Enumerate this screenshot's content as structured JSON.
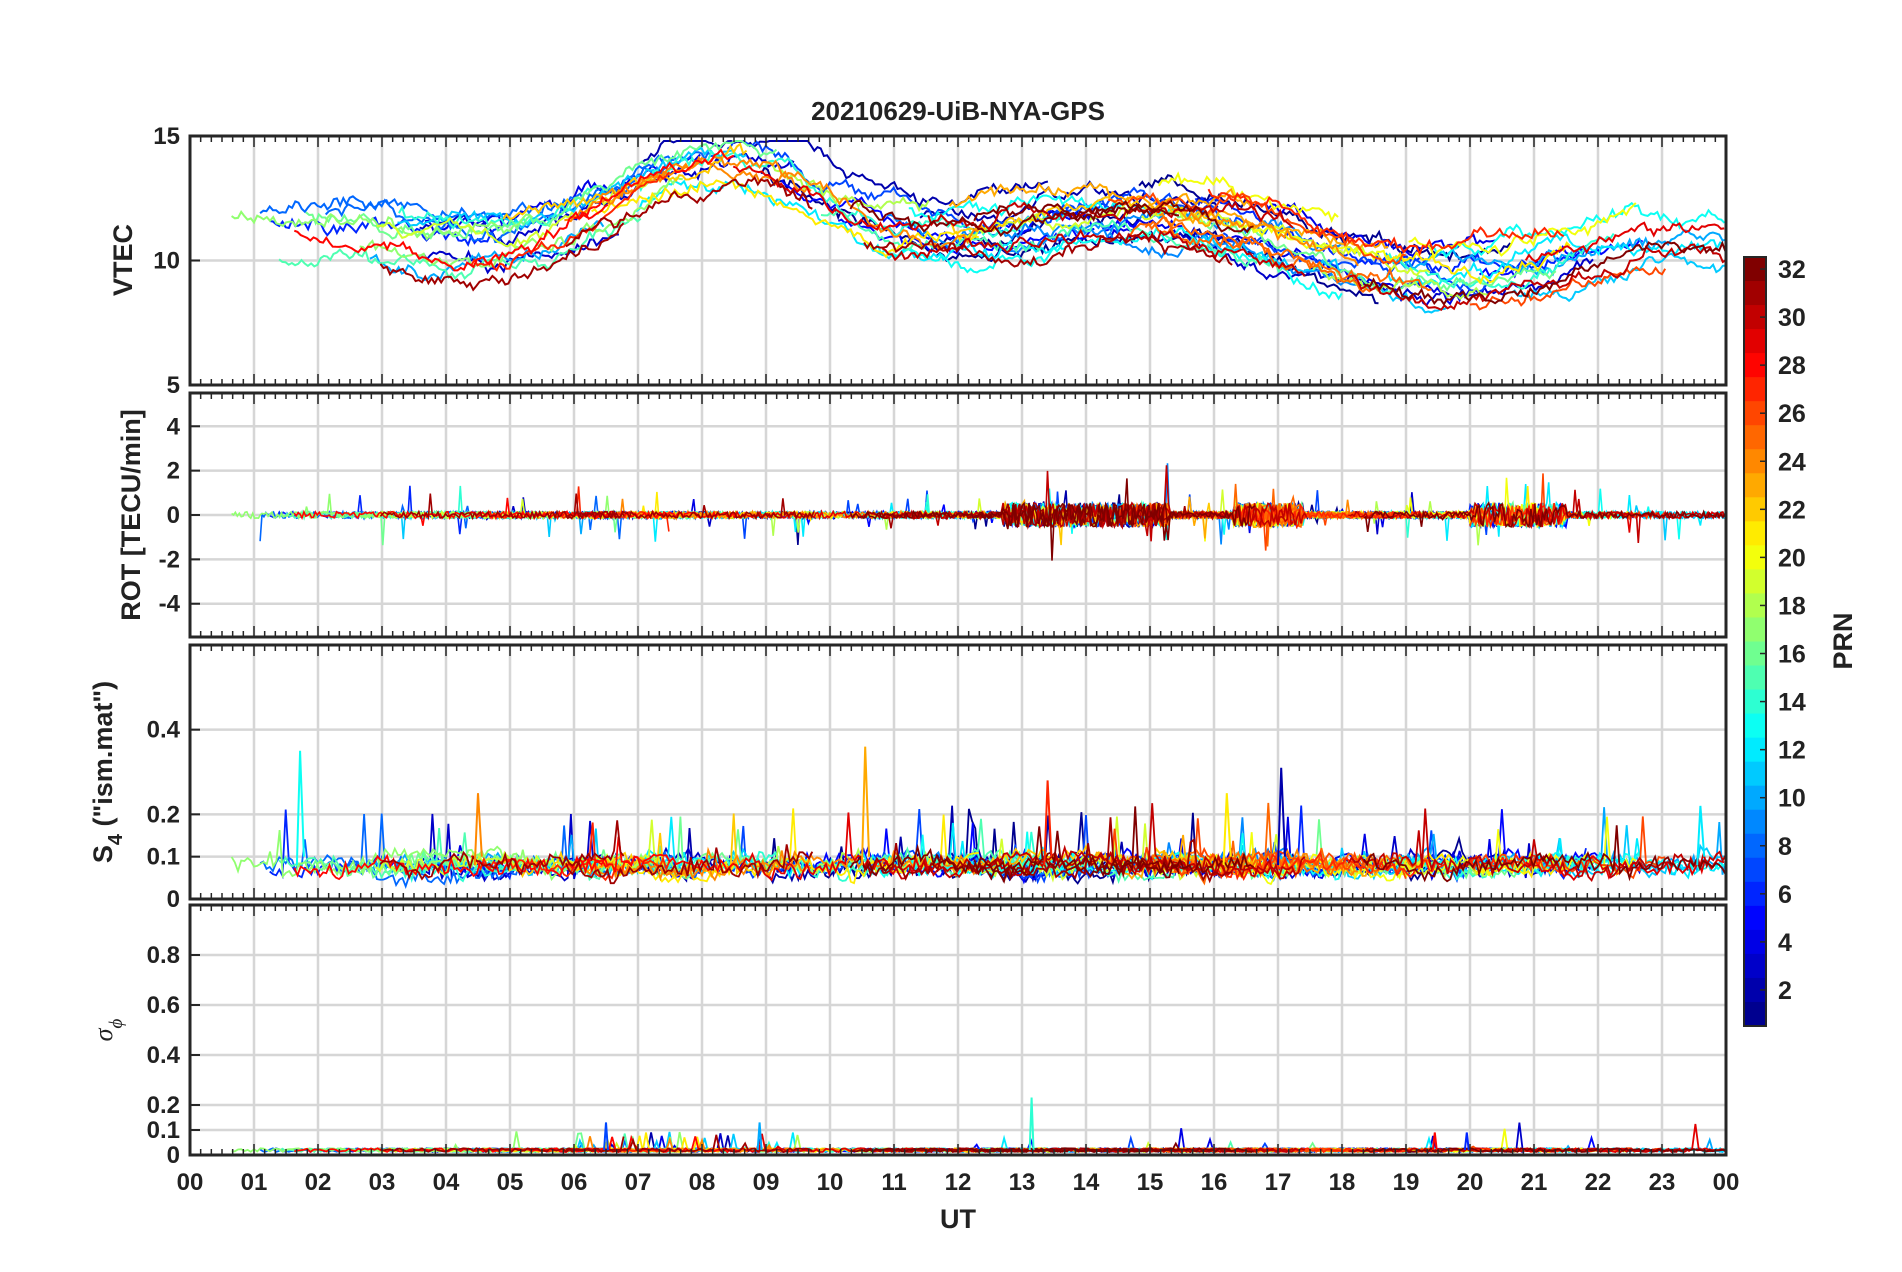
{
  "title": "20210629-UiB-NYA-GPS",
  "x_axis": {
    "label": "UT",
    "range_hours": [
      0,
      24
    ],
    "tick_labels": [
      "00",
      "01",
      "02",
      "03",
      "04",
      "05",
      "06",
      "07",
      "08",
      "09",
      "10",
      "11",
      "12",
      "13",
      "14",
      "15",
      "16",
      "17",
      "18",
      "19",
      "20",
      "21",
      "22",
      "23",
      "00"
    ]
  },
  "colorbar": {
    "label": "PRN",
    "range": [
      1,
      32
    ],
    "tick_labels": [
      "32",
      "30",
      "28",
      "26",
      "24",
      "22",
      "20",
      "18",
      "16",
      "14",
      "12",
      "10",
      "8",
      "6",
      "4",
      "2"
    ],
    "tick_values": [
      32,
      30,
      28,
      26,
      24,
      22,
      20,
      18,
      16,
      14,
      12,
      10,
      8,
      6,
      4,
      2
    ]
  },
  "colormap": [
    "#00008f",
    "#0000ff",
    "#0080ff",
    "#00ffff",
    "#80ff80",
    "#ffff00",
    "#ff8000",
    "#ff0000",
    "#800000"
  ],
  "chart_data": [
    {
      "type": "line",
      "panel": "VTEC",
      "ylabel": "VTEC",
      "ylim": [
        5,
        15
      ],
      "ytick_values": [
        5,
        10,
        15
      ],
      "ytick_labels": [
        "5",
        "10",
        "15"
      ],
      "grid": true,
      "series_summary": {
        "prn_count": 32,
        "typical_range": [
          7.5,
          14.8
        ],
        "peak_time_hours": 8.0,
        "peak_value": 14.8
      }
    },
    {
      "type": "line",
      "panel": "ROT",
      "ylabel": "ROT [TECU/min]",
      "ylim": [
        -5.5,
        5.5
      ],
      "ytick_values": [
        -4,
        -2,
        0,
        2,
        4
      ],
      "ytick_labels": [
        "-4",
        "-2",
        "0",
        "2",
        "4"
      ],
      "grid": true,
      "series_summary": {
        "prn_count": 32,
        "typical_range": [
          -2.5,
          2.5
        ],
        "baseline": 0
      }
    },
    {
      "type": "line",
      "panel": "S4",
      "ylabel_main": "S",
      "ylabel_sub": "4",
      "ylabel_rest": " (\"ism.mat\")",
      "ylim": [
        0,
        0.6
      ],
      "ytick_values": [
        0,
        0.1,
        0.2,
        0.4
      ],
      "ytick_labels": [
        "0",
        "0.1",
        "0.2",
        "0.4"
      ],
      "grid": true,
      "series_summary": {
        "prn_count": 32,
        "typical_range": [
          0.04,
          0.36
        ],
        "baseline": 0.07
      }
    },
    {
      "type": "line",
      "panel": "sigma_phi",
      "ylabel_main": "σ",
      "ylabel_sub": "ϕ",
      "ylim": [
        0,
        1
      ],
      "ytick_values": [
        0,
        0.1,
        0.2,
        0.4,
        0.6,
        0.8
      ],
      "ytick_labels": [
        "0",
        "0.1",
        "0.2",
        "0.4",
        "0.6",
        "0.8"
      ],
      "grid": true,
      "series_summary": {
        "prn_count": 32,
        "typical_range": [
          0,
          0.23
        ],
        "baseline": 0.02
      }
    }
  ]
}
